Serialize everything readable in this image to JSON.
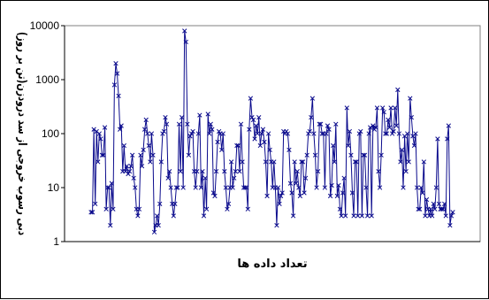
{
  "chart_data": {
    "type": "line",
    "xlabel": "تعداد داده ها",
    "ylabel": "دبی رسوب خروجی از سد درودزن(تن بر روز)",
    "yscale": "log",
    "ylim": [
      1,
      10000
    ],
    "y_ticks": [
      "1",
      "10",
      "100",
      "1000",
      "10000"
    ],
    "grid": "none",
    "legend": "none",
    "series": [
      {
        "color": "#0A0A8C",
        "marker": "x",
        "values": [
          3.5,
          3.5,
          120,
          5,
          110,
          30,
          100,
          80,
          40,
          40,
          130,
          4,
          10,
          10,
          2,
          12,
          4,
          800,
          2000,
          1300,
          500,
          120,
          140,
          20,
          60,
          20,
          25,
          18,
          20,
          25,
          40,
          15,
          10,
          4,
          3,
          4,
          40,
          25,
          50,
          120,
          180,
          100,
          60,
          30,
          100,
          40,
          1.5,
          2,
          3,
          2,
          5,
          30,
          100,
          110,
          200,
          150,
          15,
          20,
          10,
          5,
          3,
          5,
          10,
          10,
          150,
          20,
          200,
          10,
          8000,
          5000,
          150,
          40,
          90,
          100,
          110,
          20,
          10,
          20,
          100,
          220,
          10,
          20,
          3,
          15,
          4,
          230,
          100,
          150,
          120,
          8,
          7,
          20,
          70,
          110,
          100,
          50,
          100,
          20,
          10,
          4,
          5,
          10,
          30,
          10,
          15,
          20,
          60,
          60,
          20,
          150,
          30,
          10,
          10,
          10,
          4,
          120,
          450,
          200,
          180,
          80,
          140,
          100,
          200,
          60,
          100,
          120,
          70,
          30,
          7,
          100,
          50,
          30,
          10,
          30,
          10,
          2,
          10,
          5,
          7,
          8,
          110,
          100,
          110,
          100,
          50,
          12,
          8,
          3,
          30,
          12,
          20,
          10,
          7,
          30,
          30,
          8,
          15,
          40,
          100,
          110,
          200,
          450,
          100,
          40,
          10,
          20,
          150,
          150,
          100,
          100,
          10,
          100,
          140,
          120,
          7,
          11,
          60,
          30,
          150,
          7,
          11,
          4,
          3,
          8,
          15,
          3,
          300,
          60,
          110,
          40,
          8,
          3,
          30,
          30,
          3,
          100,
          110,
          3,
          40,
          40,
          10,
          3,
          100,
          130,
          3,
          140,
          120,
          130,
          300,
          20,
          10,
          40,
          300,
          250,
          100,
          100,
          180,
          130,
          300,
          100,
          110,
          300,
          140,
          650,
          100,
          30,
          50,
          10,
          90,
          20,
          100,
          30,
          450,
          200,
          90,
          60,
          100,
          10,
          4,
          4,
          10,
          8,
          30,
          3,
          6,
          4,
          3,
          4,
          3,
          5,
          4,
          10,
          80,
          5,
          4,
          4,
          4,
          5,
          3,
          80,
          140,
          2,
          3,
          3.5
        ]
      }
    ]
  }
}
